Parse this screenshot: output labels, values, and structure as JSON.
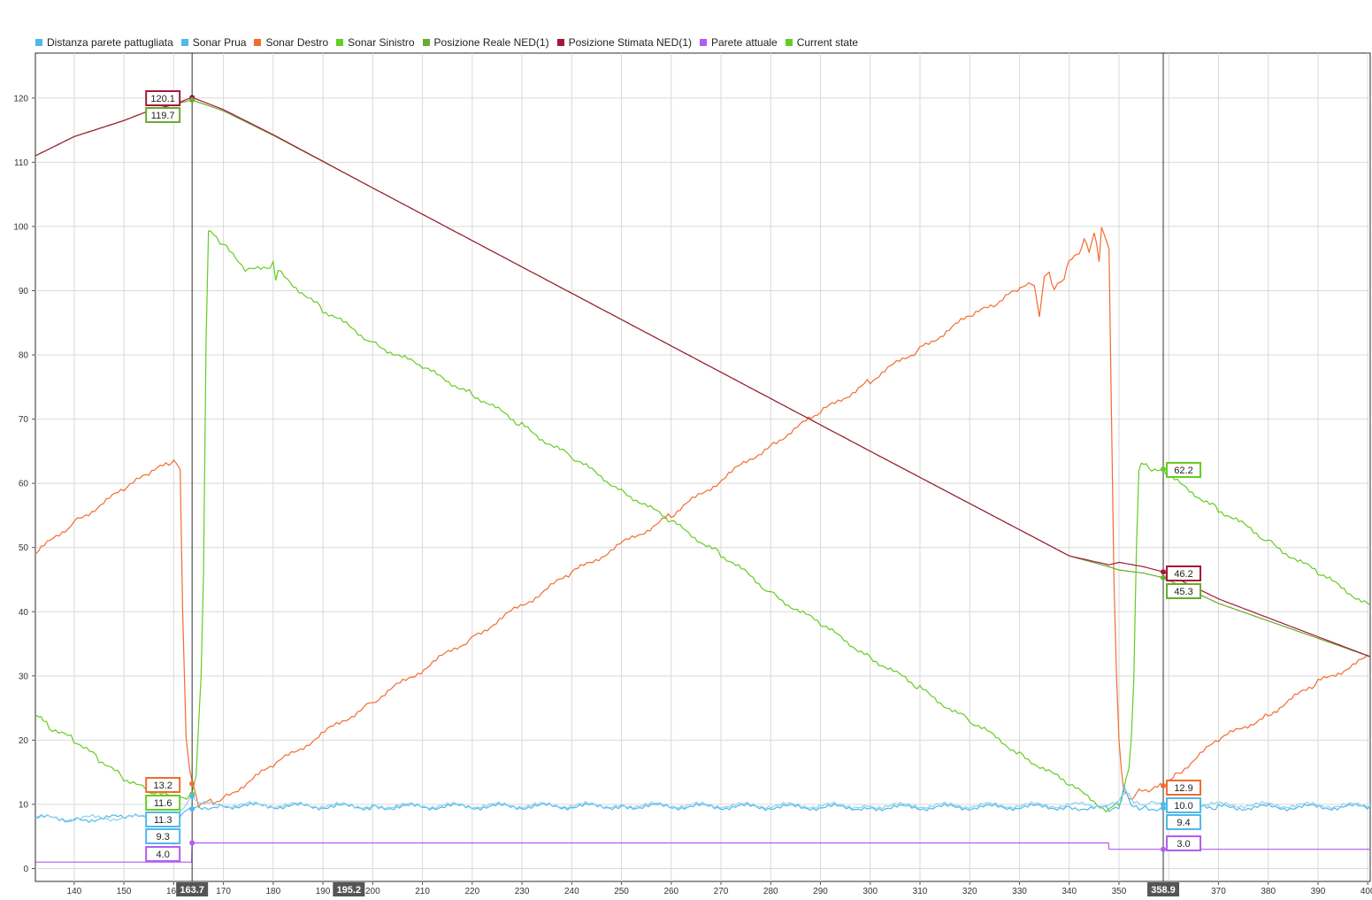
{
  "legend": [
    {
      "label": "Distanza parete pattugliata",
      "color": "#4fb9e8"
    },
    {
      "label": "Sonar Prua",
      "color": "#4fb9e8"
    },
    {
      "label": "Sonar Destro",
      "color": "#f26c2f"
    },
    {
      "label": "Sonar Sinistro",
      "color": "#66cc22"
    },
    {
      "label": "Posizione Reale NED(1)",
      "color": "#6aab2e"
    },
    {
      "label": "Posizione Stimata NED(1)",
      "color": "#a3193a"
    },
    {
      "label": "Parete attuale",
      "color": "#b25cf0"
    },
    {
      "label": "Current state",
      "color": "#66cc22"
    }
  ],
  "chart_data": {
    "type": "line",
    "xlim": [
      132.2,
      400.5
    ],
    "ylim": [
      -2,
      127
    ],
    "x_ticks": [
      140,
      150,
      160,
      170,
      180,
      190,
      200,
      210,
      220,
      230,
      240,
      250,
      260,
      270,
      280,
      290,
      300,
      310,
      320,
      330,
      340,
      350,
      360,
      370,
      380,
      390,
      400
    ],
    "y_ticks": [
      0,
      10,
      20,
      30,
      40,
      50,
      60,
      70,
      80,
      90,
      100,
      110,
      120
    ],
    "grid": true,
    "legend_position": "top-left",
    "cursors": [
      {
        "x": 163.7,
        "label": "163.7"
      },
      {
        "x": 358.9,
        "label": "358.9"
      }
    ],
    "center_marker": {
      "x": 195.2,
      "label": "195.2"
    },
    "series": [
      {
        "name": "Sonar Destro",
        "color": "#f26c2f",
        "x": [
          132.2,
          140,
          150,
          155,
          159,
          160.5,
          161.3,
          161.8,
          162.5,
          163.2,
          163.7,
          165,
          168,
          170,
          180,
          200,
          220,
          240,
          260,
          280,
          290,
          300,
          310,
          320,
          326,
          329,
          333,
          334,
          335,
          336,
          337,
          339,
          340,
          341,
          342,
          343,
          344,
          345,
          345.5,
          346,
          346.5,
          347,
          347.5,
          348,
          348.5,
          349,
          349.5,
          350,
          350.5,
          351,
          352,
          354,
          356,
          358.9,
          362,
          370,
          380,
          390,
          400.5
        ],
        "y": [
          49,
          54,
          59,
          61.5,
          63,
          63.5,
          62,
          40,
          20,
          16,
          13.2,
          10,
          10.5,
          11,
          16,
          26,
          36,
          46,
          55,
          66,
          71,
          76,
          81,
          86,
          88,
          90,
          91,
          86,
          92,
          93,
          90,
          92,
          95,
          95,
          96,
          98,
          96,
          99,
          97,
          95,
          99.5,
          99,
          97.5,
          97,
          70,
          45,
          30,
          20,
          15,
          12,
          11,
          12,
          12,
          12.9,
          15,
          20,
          24,
          29,
          33
        ]
      },
      {
        "name": "Sonar Sinistro",
        "color": "#66cc22",
        "x": [
          132.2,
          135,
          140,
          145,
          150,
          155,
          160,
          162,
          163.7,
          164.5,
          165,
          165.5,
          166,
          166.5,
          167,
          167.5,
          168,
          170,
          175,
          180,
          180.5,
          181,
          190,
          200,
          210,
          220,
          230,
          240,
          250,
          260,
          270,
          280,
          290,
          300,
          310,
          320,
          330,
          340,
          348,
          349,
          350,
          351,
          352,
          352.5,
          353,
          353.5,
          354,
          354.5,
          355,
          356,
          358.9,
          360,
          370,
          380,
          390,
          400.5
        ],
        "y": [
          24,
          22,
          20,
          17,
          14,
          12,
          11,
          11,
          11.6,
          15,
          22,
          30,
          46,
          82,
          99,
          99.3,
          99,
          97,
          93,
          94,
          92,
          93,
          87,
          82,
          78,
          74,
          69,
          64,
          59,
          54,
          49,
          43,
          38,
          33,
          28,
          23,
          18,
          13,
          9,
          10,
          10,
          12,
          16,
          20,
          30,
          50,
          62,
          63,
          63,
          62.5,
          62.2,
          61,
          56,
          51,
          46,
          41
        ]
      },
      {
        "name": "Sonar Prua",
        "color": "#4fb9e8",
        "x": [
          132.2,
          140,
          150,
          160,
          162,
          163.7,
          165,
          170,
          200,
          250,
          300,
          340,
          348,
          350,
          351,
          352,
          353,
          354,
          356,
          358.9,
          370,
          400.5
        ],
        "y": [
          8,
          7.6,
          8,
          7.8,
          8.5,
          9.3,
          9.6,
          9.8,
          9.6,
          9.7,
          9.5,
          9.6,
          9.3,
          9.6,
          12.5,
          11,
          9.5,
          9.3,
          9.5,
          9.4,
          9.5,
          9.6
        ]
      },
      {
        "name": "Distanza parete pattugliata",
        "color": "#8fd0f2",
        "x": [
          132.2,
          160,
          163.7,
          165,
          200,
          250,
          300,
          348,
          350,
          352,
          353,
          356,
          358.9,
          400.5
        ],
        "y": [
          7.8,
          8,
          11.3,
          10,
          9.8,
          9.9,
          9.8,
          9.9,
          10.5,
          12,
          10.2,
          10,
          10,
          9.8
        ]
      },
      {
        "name": "Posizione Reale NED(1)",
        "color": "#6aab2e",
        "x": [
          132.2,
          140,
          150,
          155,
          160,
          163.7,
          170,
          180,
          200,
          250,
          300,
          340,
          348,
          350,
          355,
          358.9,
          370,
          400.5
        ],
        "y": [
          111,
          114,
          116.5,
          118,
          119,
          119.7,
          118,
          114.2,
          106,
          85.5,
          65,
          48.7,
          47,
          46.5,
          46,
          45.3,
          41.3,
          33
        ]
      },
      {
        "name": "Posizione Stimata NED(1)",
        "color": "#a3193a",
        "x": [
          132.2,
          140,
          150,
          155,
          160,
          163.7,
          170,
          180,
          200,
          250,
          300,
          340,
          348,
          350,
          355,
          358.9,
          370,
          400.5
        ],
        "y": [
          111,
          114,
          116.5,
          118,
          119,
          120.1,
          118.2,
          114.3,
          106,
          85.5,
          65,
          48.7,
          47.3,
          47.7,
          47,
          46.2,
          42,
          33
        ]
      },
      {
        "name": "Parete attuale",
        "color": "#b25cf0",
        "x": [
          132.2,
          163.6,
          163.7,
          347.9,
          348,
          400.5
        ],
        "y": [
          1,
          1,
          4,
          4,
          3,
          3
        ]
      }
    ],
    "data_labels": [
      {
        "x": 163.7,
        "value": "120.1",
        "color": "#a3193a"
      },
      {
        "x": 163.7,
        "value": "119.7",
        "color": "#6aab2e"
      },
      {
        "x": 163.7,
        "value": "13.2",
        "color": "#f26c2f"
      },
      {
        "x": 163.7,
        "value": "11.6",
        "color": "#66cc22"
      },
      {
        "x": 163.7,
        "value": "11.3",
        "color": "#4fb9e8"
      },
      {
        "x": 163.7,
        "value": "9.3",
        "color": "#4fb9e8"
      },
      {
        "x": 163.7,
        "value": "4.0",
        "color": "#b25cf0"
      },
      {
        "x": 358.9,
        "value": "62.2",
        "color": "#66cc22"
      },
      {
        "x": 358.9,
        "value": "46.2",
        "color": "#a3193a"
      },
      {
        "x": 358.9,
        "value": "45.3",
        "color": "#6aab2e"
      },
      {
        "x": 358.9,
        "value": "12.9",
        "color": "#f26c2f"
      },
      {
        "x": 358.9,
        "value": "10.0",
        "color": "#4fb9e8"
      },
      {
        "x": 358.9,
        "value": "9.4",
        "color": "#4fb9e8"
      },
      {
        "x": 358.9,
        "value": "3.0",
        "color": "#b25cf0"
      }
    ]
  }
}
